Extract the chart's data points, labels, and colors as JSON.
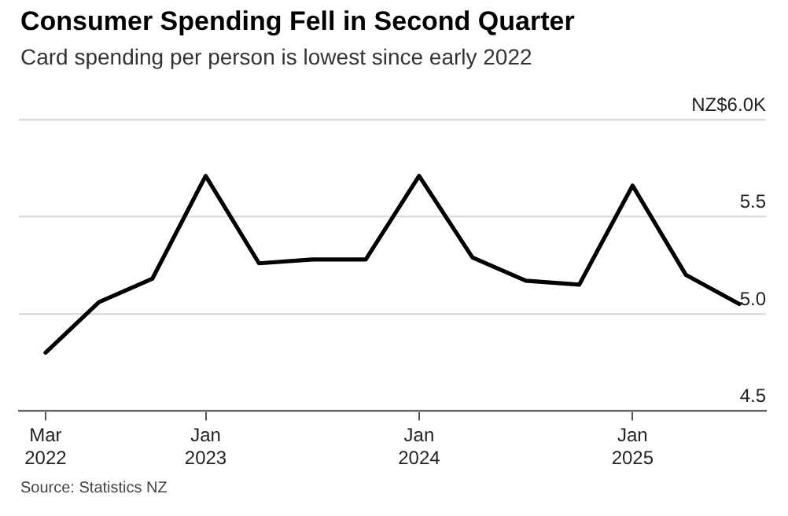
{
  "chart_data": {
    "type": "line",
    "title": "Consumer Spending Fell in Second Quarter",
    "subtitle": "Card spending per person is lowest since early 2022",
    "categories": [
      "Mar 2022",
      null,
      null,
      "Jan 2023",
      null,
      null,
      null,
      "Jan 2024",
      null,
      null,
      null,
      "Jan 2025",
      null,
      null
    ],
    "values": [
      4.8,
      5.06,
      5.18,
      5.71,
      5.26,
      5.28,
      5.28,
      5.71,
      5.29,
      5.17,
      5.15,
      5.66,
      5.2,
      5.05
    ],
    "color": "#000000",
    "marker": "none",
    "ylim": [
      4.5,
      6.0
    ],
    "yticks": [
      {
        "value": 4.5,
        "label": "4.5"
      },
      {
        "value": 5.0,
        "label": "5.0"
      },
      {
        "value": 5.5,
        "label": "5.5"
      },
      {
        "value": 6.0,
        "label": "NZ$6.0K"
      }
    ],
    "grid": "y",
    "annotations": [
      "Source: Statistics NZ"
    ]
  }
}
